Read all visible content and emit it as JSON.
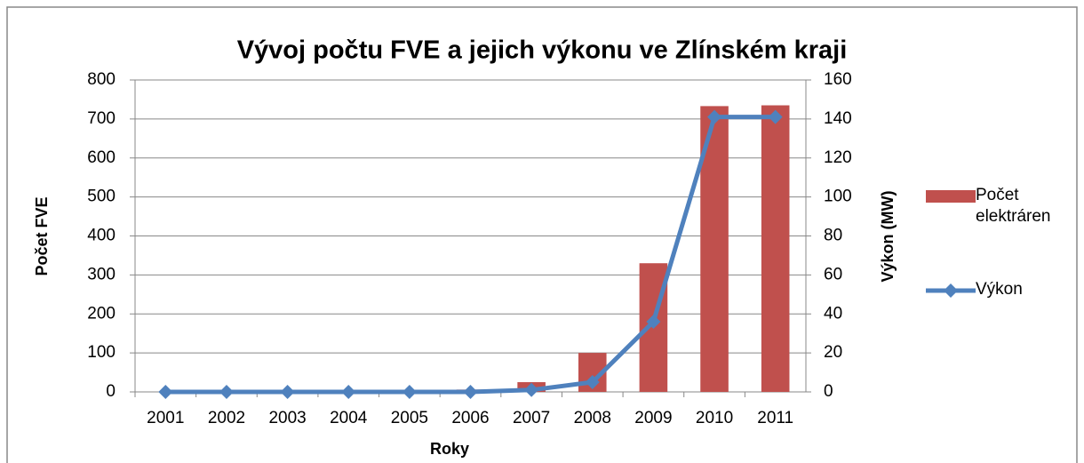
{
  "chart_data": {
    "type": "bar",
    "title": "Vývoj počtu FVE a jejich výkonu ve Zlínském kraji",
    "x_label": "Roky",
    "y_label": "Počet FVE",
    "y2_label": "Výkon (MW)",
    "categories": [
      "2001",
      "2002",
      "2003",
      "2004",
      "2005",
      "2006",
      "2007",
      "2008",
      "2009",
      "2010",
      "2011"
    ],
    "series": [
      {
        "name": "Počet elektráren",
        "type": "bar",
        "color": "#c0504d",
        "values": [
          0,
          0,
          0,
          0,
          1,
          6,
          25,
          100,
          330,
          733,
          735
        ]
      },
      {
        "name": "Výkon",
        "type": "line",
        "axis": "y2",
        "color": "#4f81bd",
        "values": [
          0,
          0,
          0,
          0,
          0,
          0,
          1,
          5,
          36,
          141,
          141
        ]
      }
    ],
    "ylim": [
      0,
      800
    ],
    "yticks": [
      0,
      100,
      200,
      300,
      400,
      500,
      600,
      700,
      800
    ],
    "y2lim": [
      0,
      160
    ],
    "y2ticks": [
      0,
      20,
      40,
      60,
      80,
      100,
      120,
      140,
      160
    ],
    "grid": true,
    "legend": "right"
  }
}
